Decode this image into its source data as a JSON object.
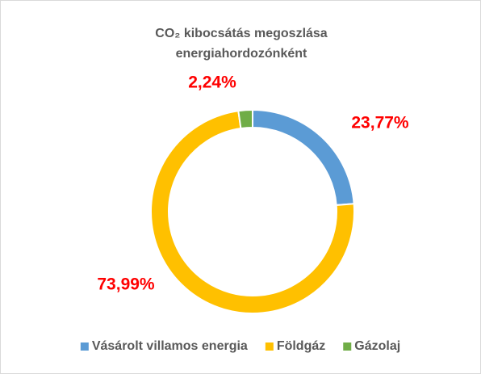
{
  "chart_data": {
    "type": "donut",
    "title": "CO₂ kibocsátás megoszlása energiahordozónként",
    "categories": [
      "Vásárolt villamos energia",
      "Földgáz",
      "Gázolaj"
    ],
    "values": [
      23.77,
      73.99,
      2.24
    ],
    "value_labels": [
      "23,77%",
      "73,99%",
      "2,24%"
    ],
    "colors": [
      "#5b9bd5",
      "#ffc000",
      "#70ad47"
    ],
    "legend": "bottom"
  }
}
